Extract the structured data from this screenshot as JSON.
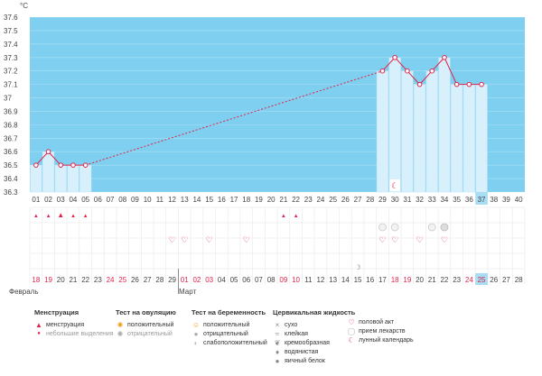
{
  "chart_data": {
    "type": "bar",
    "unit": "°C",
    "y_ticks": [
      "36.3",
      "36.4",
      "36.5",
      "36.6",
      "36.7",
      "36.8",
      "36.9",
      "37",
      "37.1",
      "37.2",
      "37.3",
      "37.4",
      "37.5",
      "37.6"
    ],
    "ylim": [
      36.3,
      37.6
    ],
    "cycle_days": [
      "01",
      "02",
      "03",
      "04",
      "05",
      "06",
      "07",
      "08",
      "09",
      "10",
      "11",
      "12",
      "13",
      "14",
      "15",
      "16",
      "17",
      "18",
      "19",
      "20",
      "21",
      "22",
      "23",
      "24",
      "25",
      "26",
      "27",
      "28",
      "29",
      "30",
      "31",
      "32",
      "33",
      "34",
      "35",
      "36",
      "37",
      "38",
      "39",
      "40"
    ],
    "dates": [
      "18",
      "19",
      "20",
      "21",
      "22",
      "23",
      "24",
      "25",
      "26",
      "27",
      "28",
      "29",
      "01",
      "02",
      "03",
      "04",
      "05",
      "06",
      "07",
      "08",
      "09",
      "10",
      "11",
      "12",
      "13",
      "14",
      "15",
      "16",
      "17",
      "18",
      "19",
      "20",
      "21",
      "22",
      "23",
      "24",
      "25",
      "26",
      "27",
      "28"
    ],
    "red_date_indices": [
      0,
      1,
      6,
      7,
      12,
      13,
      14,
      20,
      21,
      29,
      30,
      35,
      36
    ],
    "current_day_index": 36,
    "months": [
      "Февраль",
      "Март"
    ],
    "series": [
      {
        "values": [
          36.5,
          36.6,
          36.5,
          36.5,
          36.5,
          null,
          null,
          null,
          null,
          null,
          null,
          null,
          null,
          null,
          null,
          null,
          null,
          null,
          null,
          null,
          null,
          null,
          null,
          null,
          null,
          null,
          null,
          null,
          37.2,
          37.3,
          37.2,
          37.1,
          37.2,
          37.3,
          37.1,
          37.1,
          37.1,
          null,
          null,
          null
        ]
      }
    ],
    "menstruation_days": [
      0,
      1,
      2,
      3,
      4
    ],
    "menstruation_strong_days": [
      2
    ],
    "spotting_days": [
      20,
      21
    ],
    "intercourse_days": [
      11,
      12,
      14,
      17,
      28,
      29,
      31,
      33
    ],
    "pill_days": [
      28,
      29,
      32
    ],
    "pregnancy_weak_days": [
      33
    ],
    "moon_full_days": [
      26
    ],
    "moon_calendar_days": [
      29
    ],
    "fill_color": "#7fcff0",
    "bar_color": "#d8f0fc",
    "line_color": "#e0244a",
    "highlight_color": "#a8ddf3"
  },
  "legend": {
    "menstruation": {
      "title": "Менструация",
      "items": [
        {
          "label": "менструация",
          "icon": "drop-icon"
        },
        {
          "label": "небольшие выделения",
          "icon": "small-drop-icon"
        }
      ]
    },
    "ovulation": {
      "title": "Тест на овуляцию",
      "items": [
        {
          "label": "положительный",
          "icon": "sun-icon"
        },
        {
          "label": "отрицательный",
          "icon": "sun-grey-icon"
        }
      ]
    },
    "pregnancy": {
      "title": "Тест на беременность",
      "items": [
        {
          "label": "положительный",
          "icon": "smile-icon"
        },
        {
          "label": "отрицательный",
          "icon": "circle-grey-icon"
        },
        {
          "label": "слабоположительный",
          "icon": "circle-light-icon"
        }
      ]
    },
    "fluid": {
      "title": "Цервикальная жидкость",
      "items": [
        {
          "label": "сухо",
          "icon": "cross-icon"
        },
        {
          "label": "клейкая",
          "icon": "sticky-icon"
        },
        {
          "label": "кремообразная",
          "icon": "cream-icon"
        },
        {
          "label": "водянистая",
          "icon": "water-icon"
        },
        {
          "label": "яичный белок",
          "icon": "egg-icon"
        }
      ]
    },
    "other": {
      "items": [
        {
          "label": "половой акт",
          "icon": "heart-icon"
        },
        {
          "label": "прием лекарств",
          "icon": "pill-icon"
        },
        {
          "label": "лунный календарь",
          "icon": "moon-icon"
        }
      ]
    }
  }
}
